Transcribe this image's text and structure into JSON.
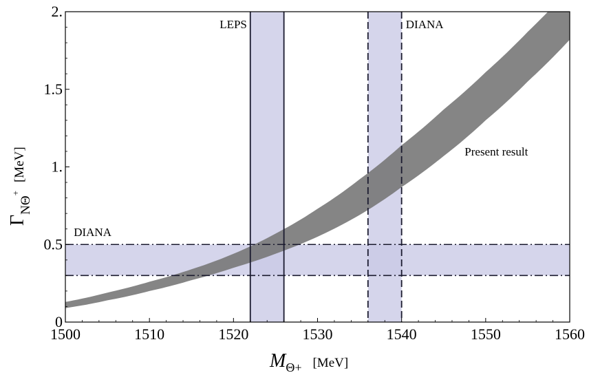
{
  "chart_data": {
    "type": "area",
    "xlim": [
      1500,
      1560
    ],
    "ylim": [
      0,
      2
    ],
    "x_ticks": [
      "1500",
      "1510",
      "1520",
      "1530",
      "1540",
      "1550",
      "1560"
    ],
    "y_ticks": [
      "0",
      "0.5",
      "1.",
      "1.5",
      "2."
    ],
    "xlabel": {
      "symbol": "M",
      "subscript": "Θ+",
      "unit": "[MeV]"
    },
    "ylabel": {
      "symbol": "Γ",
      "subscript": "NΘ",
      "superscript": "+",
      "unit": "[MeV]"
    },
    "grid": false,
    "series": [
      {
        "name": "Present result",
        "kind": "band",
        "x": [
          1500,
          1505,
          1510,
          1515,
          1520,
          1525,
          1530,
          1535,
          1540,
          1545,
          1550,
          1555,
          1560
        ],
        "lower": [
          0.09,
          0.14,
          0.2,
          0.27,
          0.35,
          0.44,
          0.55,
          0.69,
          0.87,
          1.07,
          1.3,
          1.55,
          1.82
        ],
        "upper": [
          0.13,
          0.19,
          0.26,
          0.34,
          0.44,
          0.57,
          0.73,
          0.92,
          1.14,
          1.37,
          1.61,
          1.87,
          2.15
        ]
      },
      {
        "name": "LEPS",
        "kind": "vertical-band",
        "x_range": [
          1522,
          1526
        ],
        "line_style": "solid"
      },
      {
        "name": "DIANA",
        "kind": "vertical-band",
        "x_range": [
          1536,
          1540
        ],
        "line_style": "dashed"
      },
      {
        "name": "DIANA",
        "kind": "horizontal-band",
        "y_range": [
          0.3,
          0.5
        ],
        "line_style": "dash-dot"
      }
    ],
    "annotations": [
      {
        "text": "LEPS",
        "x": 1521.6,
        "y": 1.92
      },
      {
        "text": "DIANA",
        "x": 1540.5,
        "y": 1.92
      },
      {
        "text": "Present result",
        "x": 1547.5,
        "y": 1.1
      },
      {
        "text": "DIANA",
        "x": 1501,
        "y": 0.58
      }
    ],
    "colors": {
      "band": "#787878",
      "measurement_band": "#c9c9e6",
      "lines": "#1a1a2e"
    }
  }
}
